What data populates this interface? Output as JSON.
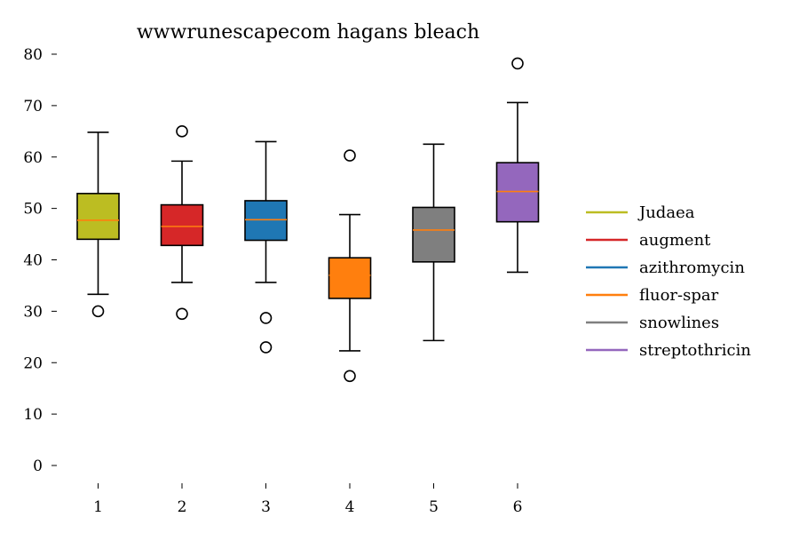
{
  "chart_data": {
    "type": "box",
    "title": "wwwrunescapecom hagans bleach",
    "xlabel": "",
    "ylabel": "",
    "ylim": [
      -3,
      82
    ],
    "y_ticks": [
      0,
      10,
      20,
      30,
      40,
      50,
      60,
      70,
      80
    ],
    "x_ticks": [
      "1",
      "2",
      "3",
      "4",
      "5",
      "6"
    ],
    "grid": false,
    "legend_position": "right",
    "median_color": "#ff7f0e",
    "series": [
      {
        "name": "Judaea",
        "x": "1",
        "color": "#bcbd22",
        "whisker_low": 33.3,
        "q1": 44.0,
        "median": 47.7,
        "q3": 52.9,
        "whisker_high": 64.8,
        "outliers": [
          30.0
        ]
      },
      {
        "name": "augment",
        "x": "2",
        "color": "#d62728",
        "whisker_low": 35.6,
        "q1": 42.8,
        "median": 46.5,
        "q3": 50.7,
        "whisker_high": 59.2,
        "outliers": [
          29.5,
          65.0
        ]
      },
      {
        "name": "azithromycin",
        "x": "3",
        "color": "#1f77b4",
        "whisker_low": 35.6,
        "q1": 43.8,
        "median": 47.8,
        "q3": 51.5,
        "whisker_high": 63.0,
        "outliers": [
          28.7,
          23.0
        ]
      },
      {
        "name": "fluor-spar",
        "x": "4",
        "color": "#ff7f0e",
        "whisker_low": 22.3,
        "q1": 32.5,
        "median": 37.0,
        "q3": 40.4,
        "whisker_high": 48.8,
        "outliers": [
          17.4,
          60.3
        ]
      },
      {
        "name": "snowlines",
        "x": "5",
        "color": "#7f7f7f",
        "whisker_low": 24.3,
        "q1": 39.6,
        "median": 45.8,
        "q3": 50.2,
        "whisker_high": 62.5,
        "outliers": []
      },
      {
        "name": "streptothricin",
        "x": "6",
        "color": "#9467bd",
        "whisker_low": 37.6,
        "q1": 47.4,
        "median": 53.3,
        "q3": 58.9,
        "whisker_high": 70.6,
        "outliers": [
          78.2
        ]
      }
    ]
  }
}
